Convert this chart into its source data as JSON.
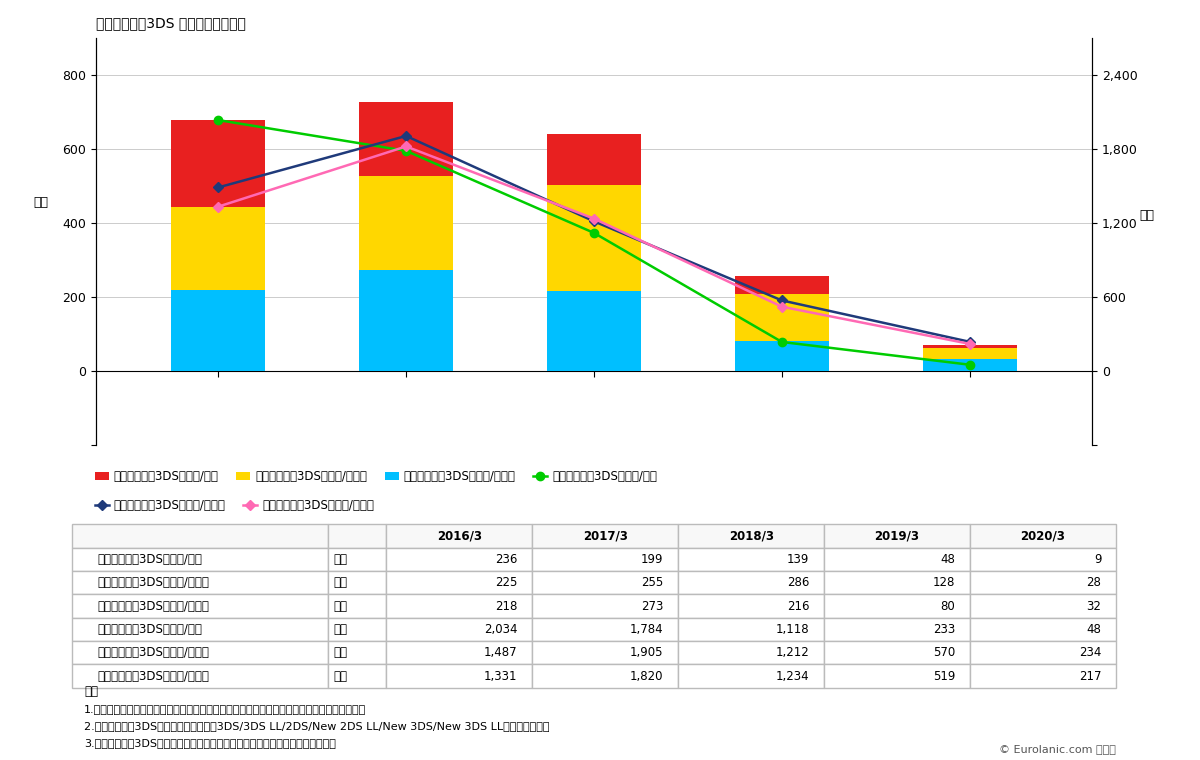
{
  "title": "ニンテンドー3DS プラットフォーム",
  "years": [
    "2016/3",
    "2017/3",
    "2018/3",
    "2019/3",
    "2020/3"
  ],
  "hardware": {
    "domestic": [
      236,
      199,
      139,
      48,
      9
    ],
    "americas": [
      225,
      255,
      286,
      128,
      28
    ],
    "other": [
      218,
      273,
      216,
      80,
      32
    ]
  },
  "software": {
    "domestic": [
      2034,
      1784,
      1118,
      233,
      48
    ],
    "americas": [
      1487,
      1905,
      1212,
      570,
      234
    ],
    "other": [
      1331,
      1820,
      1234,
      519,
      217
    ]
  },
  "bar_colors": {
    "domestic": "#e82020",
    "americas": "#ffd700",
    "other": "#00bfff"
  },
  "line_colors": {
    "sw_domestic": "#00cc00",
    "sw_americas": "#1f3a7a",
    "sw_other": "#ff69b4"
  },
  "left_ylim": [
    -200,
    900
  ],
  "right_ylim": [
    -600,
    2700
  ],
  "left_yticks": [
    -200,
    0,
    200,
    400,
    600,
    800
  ],
  "right_yticks": [
    -600,
    0,
    600,
    1200,
    1800,
    2400
  ],
  "left_ylabel": "万台",
  "right_ylabel": "万本",
  "legend_labels": [
    "ニンテンドー3DSハード/国内",
    "ニンテンドー3DSハード/米大陸",
    "ニンテンドー3DSハード/その他",
    "ニンテンドー3DSソフト/国内",
    "ニンテンドー3DSソフト/米大陸",
    "ニンテンドー3DSソフト/その他"
  ],
  "table_col_headers": [
    "",
    "",
    "2016/3",
    "2017/3",
    "2018/3",
    "2019/3",
    "2020/3"
  ],
  "table_rows": [
    [
      "ニンテンドー3DSハード/国内",
      "万台",
      "236",
      "199",
      "139",
      "48",
      "9"
    ],
    [
      "ニンテンドー3DSハード/米大陸",
      "万台",
      "225",
      "255",
      "286",
      "128",
      "28"
    ],
    [
      "ニンテンドー3DSハード/その他",
      "万台",
      "218",
      "273",
      "216",
      "80",
      "32"
    ],
    [
      "ニンテンドー3DSソフト/国内",
      "万本",
      "2,034",
      "1,784",
      "1,118",
      "233",
      "48"
    ],
    [
      "ニンテンドー3DSソフト/米大陸",
      "万本",
      "1,487",
      "1,905",
      "1,212",
      "570",
      "234"
    ],
    [
      "ニンテンドー3DSソフト/その他",
      "万本",
      "1,331",
      "1,820",
      "1,234",
      "519",
      "217"
    ]
  ],
  "note_title": "注釈",
  "notes": [
    "1.各数字は実数を四捨五入しているため、各期のトータルや合計数は必ずしも一致しません。",
    "2.ニンテンドー3DSとは「ニンテンドー3DS/3DS LL/2DS/New 2DS LL/New 3DS/New 3DS LL」を指します。",
    "3.ニンテンドー3DSのソフトには、カードソフトのダウンロード版を含みます。"
  ],
  "copyright": "© Eurolanic.com 転載元",
  "bg_color": "#ffffff",
  "grid_color": "#cccccc",
  "scale": 3.0
}
